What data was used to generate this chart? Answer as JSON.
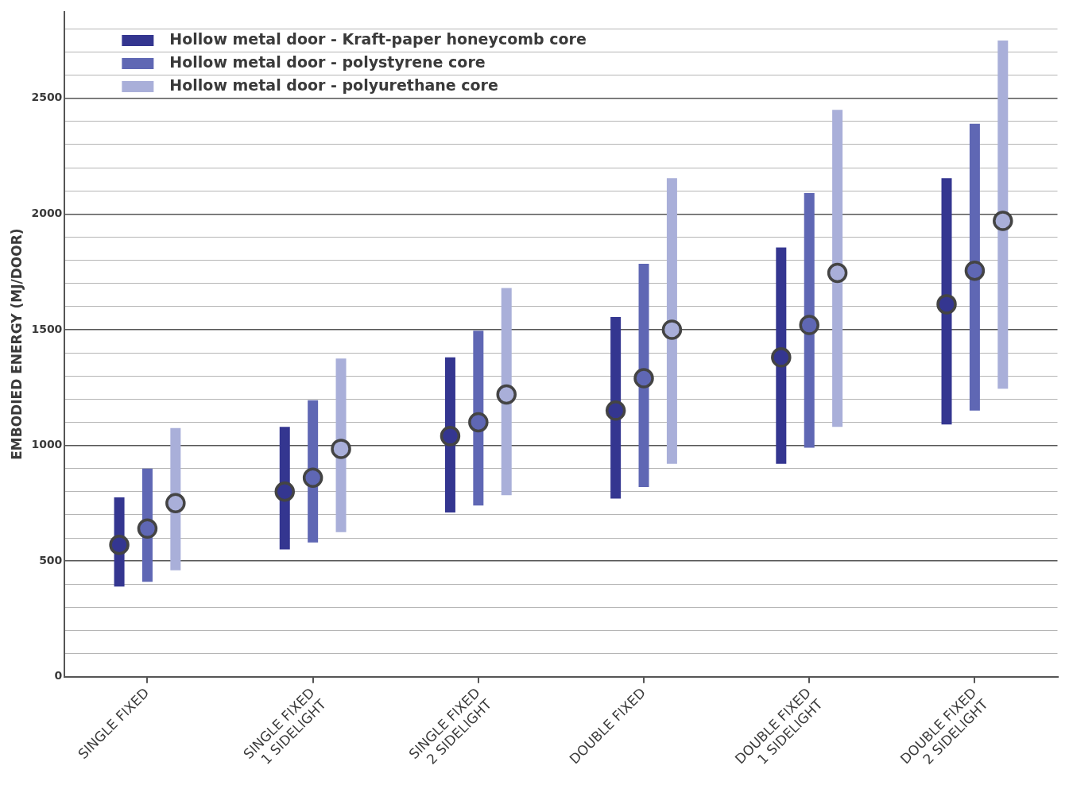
{
  "chart_data": {
    "type": "scatter",
    "ylabel": "EMBODIED ENERGY (MJ/DOOR)",
    "categories": [
      "SINGLE FIXED",
      "SINGLE FIXED 1 SIDELIGHT",
      "SINGLE FIXED 2 SIDELIGHT",
      "DOUBLE FIXED",
      "DOUBLE FIXED 1 SIDELIGHT",
      "DOUBLE FIXED 2 SIDELIGHT"
    ],
    "series": [
      {
        "name": "Hollow metal door - Kraft-paper honeycomb core",
        "color": "#343690",
        "values": [
          570,
          800,
          1040,
          1150,
          1380,
          1610
        ],
        "errors": [
          [
            390,
            775
          ],
          [
            550,
            1080
          ],
          [
            710,
            1380
          ],
          [
            770,
            1555
          ],
          [
            920,
            1855
          ],
          [
            1090,
            2155
          ]
        ]
      },
      {
        "name": "Hollow metal door - polystyrene core",
        "color": "#5f67b4",
        "values": [
          640,
          860,
          1100,
          1290,
          1520,
          1755
        ],
        "errors": [
          [
            410,
            900
          ],
          [
            580,
            1195
          ],
          [
            740,
            1495
          ],
          [
            820,
            1785
          ],
          [
            990,
            2090
          ],
          [
            1150,
            2390
          ]
        ]
      },
      {
        "name": "Hollow metal door - polyurethane core",
        "color": "#a9afd9",
        "values": [
          750,
          985,
          1220,
          1500,
          1745,
          1970
        ],
        "errors": [
          [
            460,
            1075
          ],
          [
            625,
            1375
          ],
          [
            785,
            1680
          ],
          [
            920,
            2155
          ],
          [
            1080,
            2450
          ],
          [
            1245,
            2750
          ]
        ]
      }
    ],
    "ylim": [
      0,
      2875
    ],
    "yticks": [
      0,
      {
        "value": 100,
        "label": null
      },
      {
        "value": 200,
        "label": null
      },
      {
        "value": 300,
        "label": null
      },
      {
        "value": 400,
        "label": null
      },
      500,
      {
        "value": 600,
        "label": null
      },
      {
        "value": 700,
        "label": null
      },
      {
        "value": 800,
        "label": null
      },
      {
        "value": 900,
        "label": null
      },
      1000,
      {
        "value": 1100,
        "label": null
      },
      {
        "value": 1200,
        "label": null
      },
      {
        "value": 1300,
        "label": null
      },
      {
        "value": 1400,
        "label": null
      },
      1500,
      {
        "value": 1600,
        "label": null
      },
      {
        "value": 1700,
        "label": null
      },
      {
        "value": 1800,
        "label": null
      },
      {
        "value": 1900,
        "label": null
      },
      2000,
      {
        "value": 2100,
        "label": null
      },
      {
        "value": 2200,
        "label": null
      },
      {
        "value": 2300,
        "label": null
      },
      {
        "value": 2400,
        "label": null
      },
      2500,
      {
        "value": 2600,
        "label": null
      },
      {
        "value": 2700,
        "label": null
      },
      {
        "value": 2800,
        "label": null
      }
    ],
    "grid": "y",
    "legend": "top left",
    "marker": "circle"
  }
}
